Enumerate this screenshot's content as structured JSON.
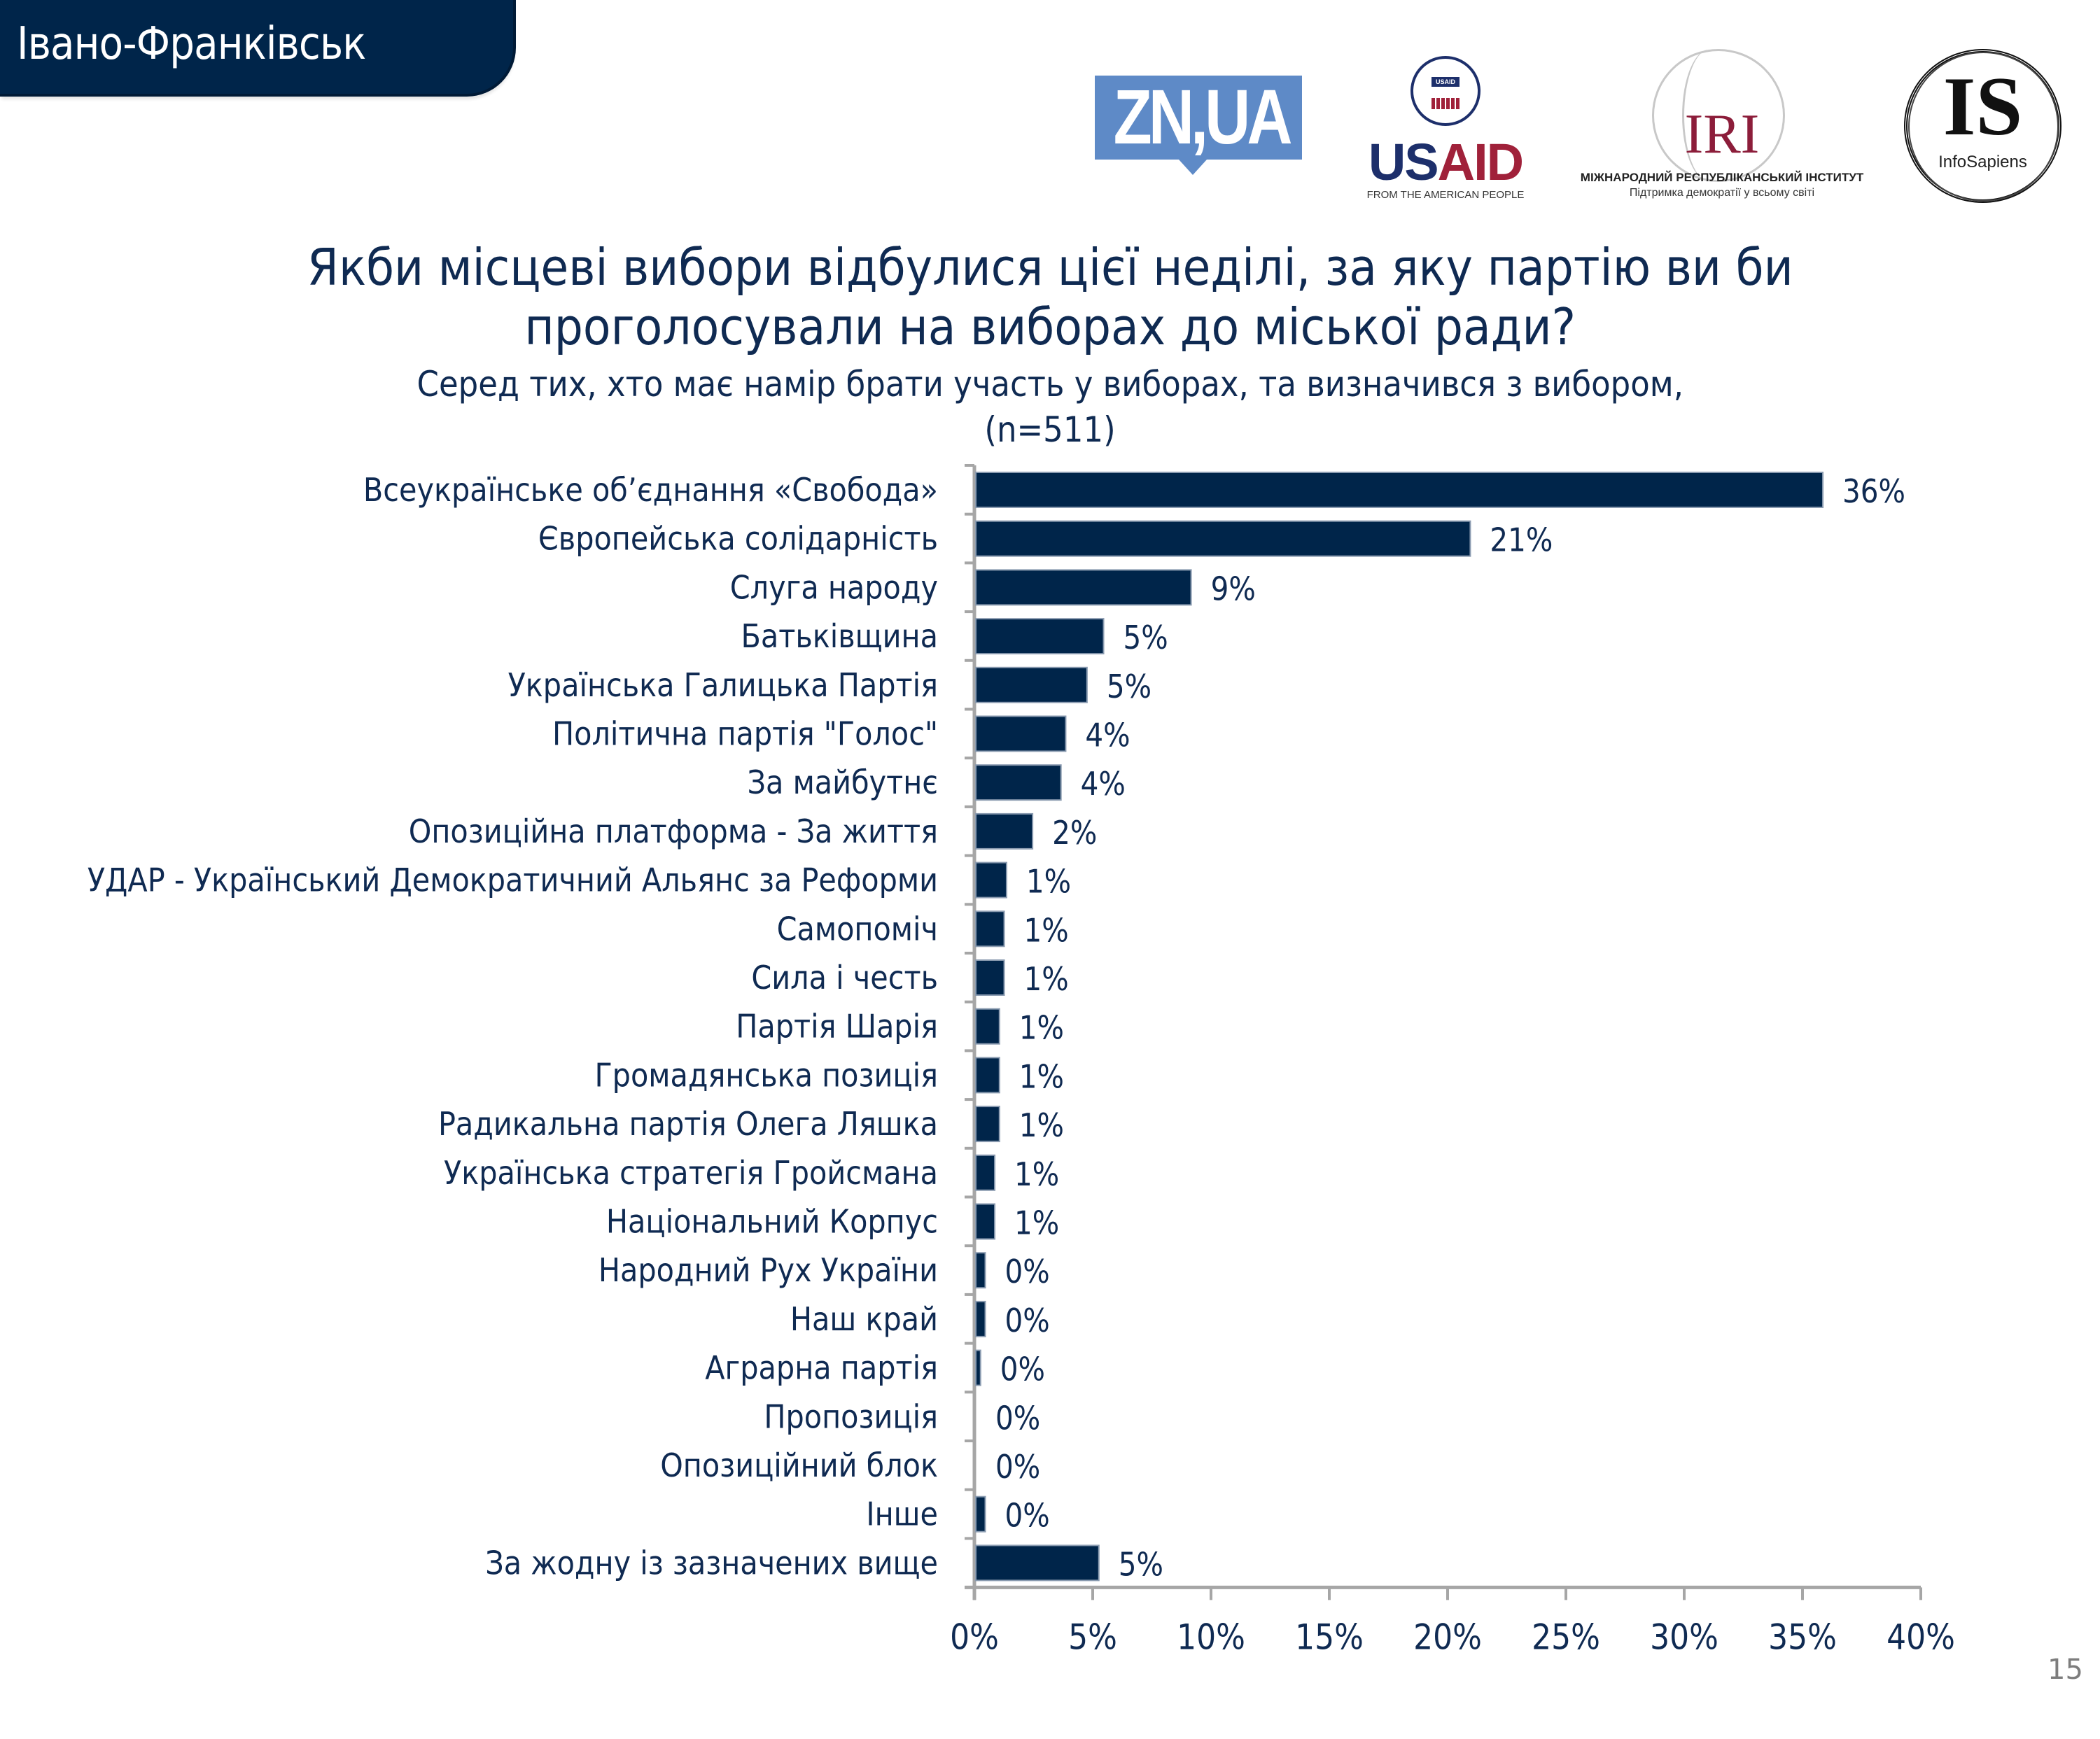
{
  "header": {
    "city": "Івано-Франківськ"
  },
  "logos": {
    "znua": "ZN,UA",
    "usaid": {
      "seal_text": "USAID",
      "word_us": "US",
      "word_aid": "AID",
      "tagline": "FROM THE AMERICAN PEOPLE"
    },
    "iri": {
      "word": "IRI",
      "name": "МІЖНАРОДНИЙ РЕСПУБЛІКАНСЬКИЙ ІНСТИТУТ",
      "tagline": "Підтримка демократії у всьому світі"
    },
    "infosapiens": {
      "word": "IS",
      "name": "InfoSapiens"
    }
  },
  "page_number": "15",
  "colors": {
    "bar": "#00254a",
    "text": "#0f2a52",
    "axis": "#a6a6a6",
    "header_bg": "#00254a"
  },
  "chart_data": {
    "type": "bar",
    "orientation": "horizontal",
    "title": "Якби місцеві вибори відбулися цієї неділі, за яку партію ви би",
    "title_line2": "проголосували на виборах до міської ради?",
    "subtitle": "Серед тих, хто має намір брати участь у виборах, та визначився з вибором,",
    "subtitle_line2": "(n=511)",
    "xlabel": "",
    "ylabel": "",
    "xlim": [
      0,
      40
    ],
    "grid": false,
    "legend": "none",
    "x_ticks": [
      "0%",
      "5%",
      "10%",
      "15%",
      "20%",
      "25%",
      "30%",
      "35%",
      "40%"
    ],
    "x_tick_values": [
      0,
      5,
      10,
      15,
      20,
      25,
      30,
      35,
      40
    ],
    "categories": [
      "Всеукраїнське об’єднання «Свобода»",
      "Європейська солідарність",
      "Слуга народу",
      "Батьківщина",
      "Українська Галицька Партія",
      "Політична партія \"Голос\"",
      "За майбутнє",
      "Опозиційна платформа - За життя",
      "УДАР - Український Демократичний Альянс за Реформи",
      "Самопоміч",
      "Сила і честь",
      "Партія Шарія",
      "Громадянська позиція",
      "Радикальна партія Олега Ляшка",
      "Українська стратегія Гройсмана",
      "Національний Корпус",
      "Народний Рух України",
      "Наш край",
      "Аграрна партія",
      "Пропозиція",
      "Опозиційний блок",
      "Інше",
      "За жодну із зазначених вище"
    ],
    "values": [
      35.8,
      20.9,
      9.1,
      5.4,
      4.7,
      3.8,
      3.6,
      2.4,
      1.3,
      1.2,
      1.2,
      1.0,
      1.0,
      1.0,
      0.8,
      0.8,
      0.4,
      0.4,
      0.2,
      0.0,
      0.0,
      0.4,
      5.2
    ],
    "labels": [
      "36%",
      "21%",
      "9%",
      "5%",
      "5%",
      "4%",
      "4%",
      "2%",
      "1%",
      "1%",
      "1%",
      "1%",
      "1%",
      "1%",
      "1%",
      "1%",
      "0%",
      "0%",
      "0%",
      "0%",
      "0%",
      "0%",
      "5%"
    ]
  }
}
